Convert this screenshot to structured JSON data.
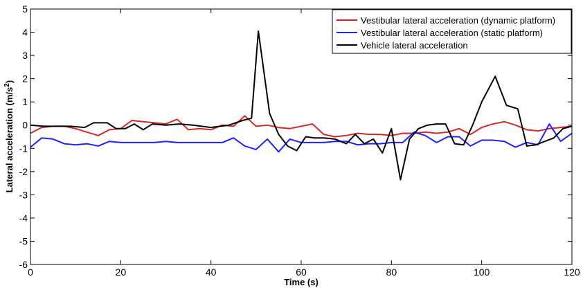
{
  "chart_data": {
    "type": "line",
    "xlabel": "Time (s)",
    "ylabel_main": "Lateral acceleration (m/s",
    "ylabel_sup": "2",
    "ylabel_tail": ")",
    "xlim": [
      0,
      120
    ],
    "ylim": [
      -6,
      5
    ],
    "xticks": [
      0,
      20,
      40,
      60,
      80,
      100,
      120
    ],
    "yticks": [
      -6,
      -5,
      -4,
      -3,
      -2,
      -1,
      0,
      1,
      2,
      3,
      4,
      5
    ],
    "grid": false,
    "legend_position": "top-right",
    "series": [
      {
        "name": "Vestibular lateral acceleration (dynamic platform)",
        "color": "#d62728",
        "x": [
          0,
          2.5,
          5,
          7.5,
          10,
          12.5,
          15,
          17.5,
          20,
          22.5,
          25,
          27.5,
          30,
          32.5,
          35,
          37.5,
          40,
          42.5,
          45,
          47.5,
          50,
          52.5,
          55,
          57.5,
          60,
          62.5,
          65,
          67.5,
          70,
          72.5,
          75,
          77.5,
          80,
          82.5,
          85,
          87.5,
          90,
          92.5,
          95,
          97.5,
          100,
          102.5,
          105,
          107.5,
          110,
          112.5,
          115,
          117.5,
          120
        ],
        "y": [
          -0.35,
          -0.1,
          -0.05,
          -0.05,
          -0.15,
          -0.3,
          -0.45,
          -0.2,
          -0.15,
          0.2,
          0.15,
          0.1,
          0.05,
          0.25,
          -0.2,
          -0.15,
          -0.2,
          0.0,
          -0.05,
          0.4,
          -0.05,
          0.0,
          -0.1,
          -0.15,
          -0.05,
          0.05,
          -0.4,
          -0.5,
          -0.45,
          -0.35,
          -0.4,
          -0.4,
          -0.45,
          -0.35,
          -0.35,
          -0.3,
          -0.35,
          -0.3,
          -0.15,
          -0.4,
          -0.1,
          0.05,
          0.15,
          0.0,
          -0.2,
          -0.25,
          -0.15,
          -0.1,
          -0.05
        ]
      },
      {
        "name": "Vestibular lateral acceleration (static platform)",
        "color": "#1f1fff",
        "x": [
          0,
          2.5,
          5,
          7.5,
          10,
          12.5,
          15,
          17.5,
          20,
          22.5,
          25,
          27.5,
          30,
          32.5,
          35,
          37.5,
          40,
          42.5,
          45,
          47.5,
          50,
          52.5,
          55,
          57.5,
          60,
          62.5,
          65,
          67.5,
          70,
          72.5,
          75,
          77.5,
          80,
          82.5,
          85,
          87.5,
          90,
          92.5,
          95,
          97.5,
          100,
          102.5,
          105,
          107.5,
          110,
          112.5,
          115,
          117.5,
          120
        ],
        "y": [
          -0.95,
          -0.55,
          -0.6,
          -0.8,
          -0.85,
          -0.8,
          -0.9,
          -0.7,
          -0.75,
          -0.75,
          -0.75,
          -0.75,
          -0.7,
          -0.75,
          -0.75,
          -0.75,
          -0.75,
          -0.75,
          -0.55,
          -0.9,
          -1.05,
          -0.6,
          -1.15,
          -0.6,
          -0.75,
          -0.75,
          -0.75,
          -0.7,
          -0.7,
          -0.85,
          -0.8,
          -0.8,
          -0.75,
          -0.75,
          -0.3,
          -0.45,
          -0.75,
          -0.5,
          -0.5,
          -0.9,
          -0.65,
          -0.65,
          -0.7,
          -0.95,
          -0.75,
          -0.85,
          0.05,
          -0.7,
          -0.35
        ]
      },
      {
        "name": "Vehicle lateral acceleration",
        "color": "#000000",
        "x": [
          0,
          3,
          6,
          9,
          12,
          14,
          17,
          19,
          21,
          23,
          25,
          27,
          30,
          33,
          36,
          40,
          44,
          47,
          49,
          50.5,
          53,
          55,
          57,
          59,
          61,
          63,
          65,
          67.5,
          70,
          72,
          74,
          76,
          78,
          80,
          82,
          84,
          86,
          88,
          90,
          92,
          94,
          96,
          98,
          100,
          103,
          105.5,
          108,
          110,
          112,
          114,
          116,
          118,
          120
        ],
        "y": [
          0.0,
          -0.05,
          -0.05,
          -0.05,
          -0.1,
          0.1,
          0.1,
          -0.15,
          -0.15,
          0.05,
          -0.2,
          0.05,
          0.0,
          0.05,
          0.0,
          -0.1,
          0.0,
          0.2,
          0.3,
          4.05,
          0.5,
          -0.4,
          -0.9,
          -1.1,
          -0.5,
          -0.55,
          -0.55,
          -0.6,
          -0.8,
          -0.4,
          -0.8,
          -0.6,
          -1.2,
          -0.15,
          -2.35,
          -0.6,
          -0.15,
          0.0,
          0.05,
          0.05,
          -0.8,
          -0.85,
          0.0,
          1.0,
          2.1,
          0.85,
          0.7,
          -0.9,
          -0.85,
          -0.7,
          -0.55,
          -0.15,
          -0.05
        ]
      }
    ]
  }
}
